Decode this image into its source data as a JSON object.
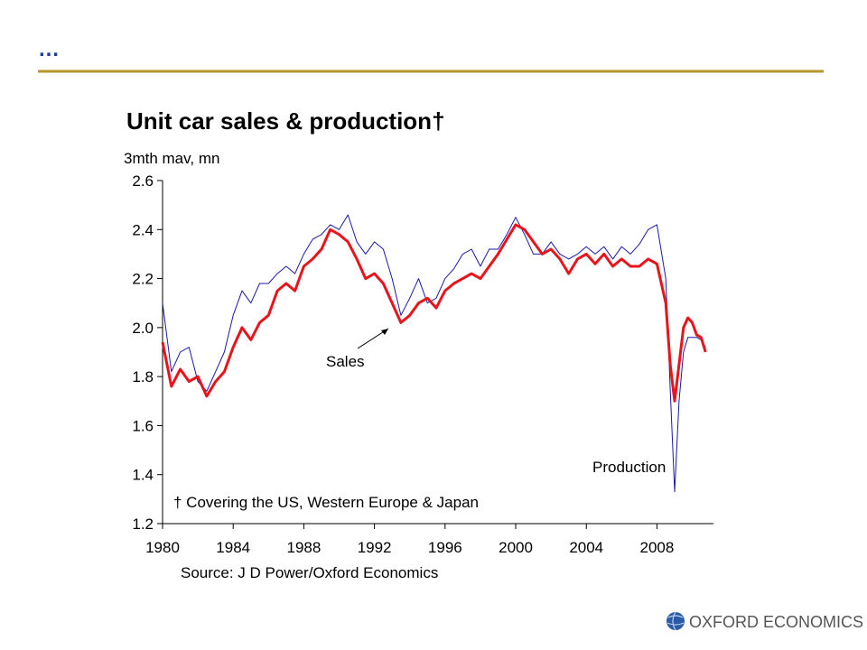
{
  "header": {
    "title": "…"
  },
  "chart_data": {
    "type": "line",
    "title": "Unit car sales & production†",
    "ylabel": "3mth mav, mn",
    "annotations": [
      "Sales",
      "Production"
    ],
    "footnote": "† Covering the US, Western Europe & Japan",
    "source": "Source: J D Power/Oxford Economics",
    "x": [
      1980,
      1980.5,
      1981,
      1981.5,
      1982,
      1982.5,
      1983,
      1983.5,
      1984,
      1984.5,
      1985,
      1985.5,
      1986,
      1986.5,
      1987,
      1987.5,
      1988,
      1988.5,
      1989,
      1989.5,
      1990,
      1990.5,
      1991,
      1991.5,
      1992,
      1992.5,
      1993,
      1993.5,
      1994,
      1994.5,
      1995,
      1995.5,
      1996,
      1996.5,
      1997,
      1997.5,
      1998,
      1998.5,
      1999,
      1999.5,
      2000,
      2000.5,
      2001,
      2001.5,
      2002,
      2002.5,
      2003,
      2003.5,
      2004,
      2004.5,
      2005,
      2005.5,
      2006,
      2006.5,
      2007,
      2007.5,
      2008,
      2008.5,
      2008.75,
      2009,
      2009.25,
      2009.5,
      2009.75,
      2010,
      2010.25,
      2010.5,
      2010.75
    ],
    "series": [
      {
        "name": "Production",
        "color": "#1a1aa8",
        "width": 1,
        "values": [
          2.1,
          1.82,
          1.9,
          1.92,
          1.78,
          1.74,
          1.82,
          1.9,
          2.05,
          2.15,
          2.1,
          2.18,
          2.18,
          2.22,
          2.25,
          2.22,
          2.3,
          2.36,
          2.38,
          2.42,
          2.4,
          2.46,
          2.35,
          2.3,
          2.35,
          2.32,
          2.2,
          2.05,
          2.12,
          2.2,
          2.1,
          2.12,
          2.2,
          2.24,
          2.3,
          2.32,
          2.25,
          2.32,
          2.32,
          2.38,
          2.45,
          2.38,
          2.3,
          2.3,
          2.35,
          2.3,
          2.28,
          2.3,
          2.33,
          2.3,
          2.33,
          2.28,
          2.33,
          2.3,
          2.34,
          2.4,
          2.42,
          2.2,
          1.75,
          1.33,
          1.7,
          1.9,
          1.96,
          1.96,
          1.96,
          1.95,
          1.92
        ]
      },
      {
        "name": "Sales",
        "color": "#e8141a",
        "width": 3,
        "values": [
          1.94,
          1.76,
          1.83,
          1.78,
          1.8,
          1.72,
          1.78,
          1.82,
          1.92,
          2.0,
          1.95,
          2.02,
          2.05,
          2.15,
          2.18,
          2.15,
          2.25,
          2.28,
          2.32,
          2.4,
          2.38,
          2.35,
          2.28,
          2.2,
          2.22,
          2.18,
          2.1,
          2.02,
          2.05,
          2.1,
          2.12,
          2.08,
          2.15,
          2.18,
          2.2,
          2.22,
          2.2,
          2.25,
          2.3,
          2.36,
          2.42,
          2.4,
          2.35,
          2.3,
          2.32,
          2.28,
          2.22,
          2.28,
          2.3,
          2.26,
          2.3,
          2.25,
          2.28,
          2.25,
          2.25,
          2.28,
          2.26,
          2.1,
          1.85,
          1.7,
          1.85,
          2.0,
          2.04,
          2.02,
          1.97,
          1.96,
          1.9
        ]
      }
    ],
    "xlim": [
      1980,
      2011.2
    ],
    "xticks": [
      1980,
      1984,
      1988,
      1992,
      1996,
      2000,
      2004,
      2008
    ],
    "ylim": [
      1.2,
      2.6
    ],
    "yticks": [
      1.2,
      1.4,
      1.6,
      1.8,
      {
        "value": 2,
        "label": "2.0"
      },
      2.2,
      2.4,
      2.6
    ]
  },
  "footer": {
    "logo": "OXFORD ECONOMICS"
  }
}
